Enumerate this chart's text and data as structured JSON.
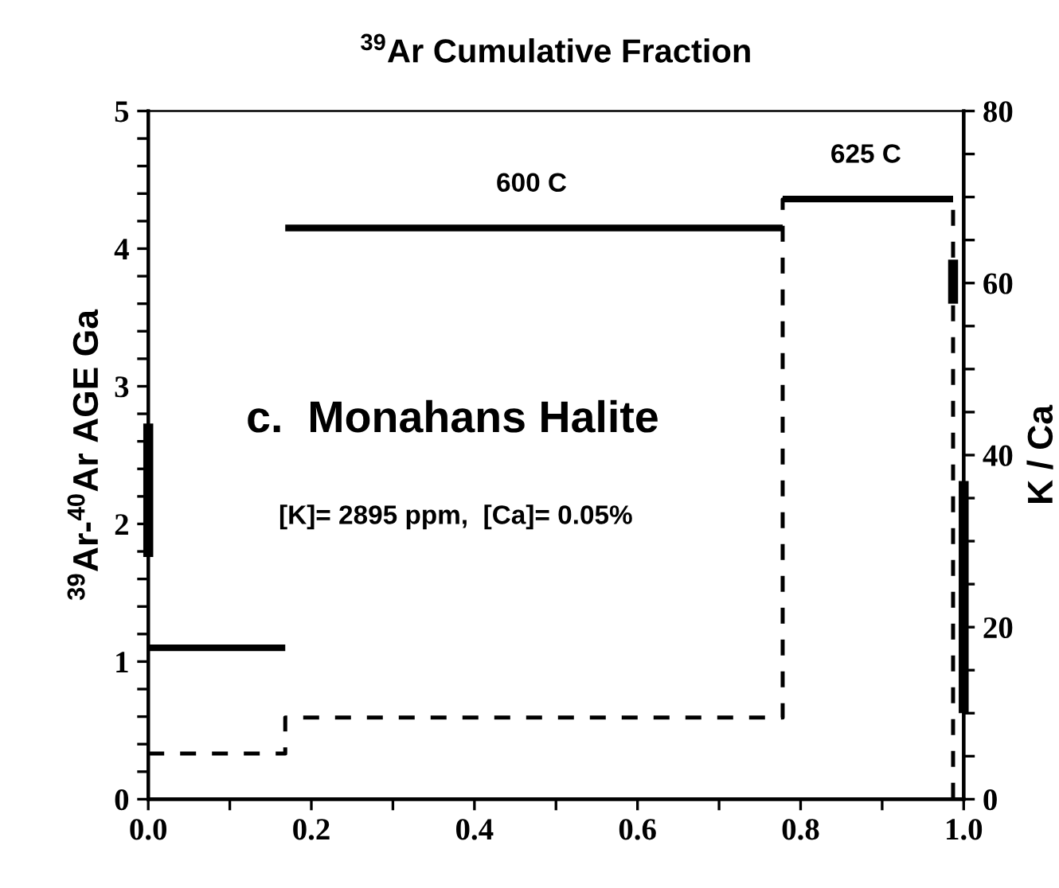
{
  "chart_data": {
    "type": "line",
    "title": "$^{39}$Ar Cumulative Fraction",
    "ylabel": "$^{39}$Ar-$^{40}$Ar AGE Ga",
    "y2label": "K / Ca",
    "xlim": [
      0,
      1.0
    ],
    "xticks": [
      {
        "value": 0,
        "label": "0.0"
      },
      {
        "value": 0.1,
        "label": null
      },
      {
        "value": 0.2,
        "label": "0.2"
      },
      {
        "value": 0.3,
        "label": null
      },
      {
        "value": 0.4,
        "label": "0.4"
      },
      {
        "value": 0.5,
        "label": null
      },
      {
        "value": 0.6,
        "label": "0.6"
      },
      {
        "value": 0.7,
        "label": null
      },
      {
        "value": 0.8,
        "label": "0.8"
      },
      {
        "value": 0.9,
        "label": null
      },
      {
        "value": 1.0,
        "label": "1.0"
      }
    ],
    "ylim": [
      0,
      5
    ],
    "yticks": [
      0,
      {
        "value": 0.2,
        "label": null
      },
      {
        "value": 0.4,
        "label": null
      },
      {
        "value": 0.6,
        "label": null
      },
      {
        "value": 0.8,
        "label": null
      },
      1,
      {
        "value": 1.2,
        "label": null
      },
      {
        "value": 1.4,
        "label": null
      },
      {
        "value": 1.6,
        "label": null
      },
      {
        "value": 1.8,
        "label": null
      },
      2,
      {
        "value": 2.2,
        "label": null
      },
      {
        "value": 2.4,
        "label": null
      },
      {
        "value": 2.6,
        "label": null
      },
      {
        "value": 2.8,
        "label": null
      },
      3,
      {
        "value": 3.2,
        "label": null
      },
      {
        "value": 3.4,
        "label": null
      },
      {
        "value": 3.6,
        "label": null
      },
      {
        "value": 3.8,
        "label": null
      },
      4,
      {
        "value": 4.2,
        "label": null
      },
      {
        "value": 4.4,
        "label": null
      },
      {
        "value": 4.6,
        "label": null
      },
      {
        "value": 4.8,
        "label": null
      },
      5
    ],
    "y2lim": [
      0,
      80
    ],
    "y2ticks": [
      0,
      {
        "value": 5,
        "label": null
      },
      {
        "value": 10,
        "label": null
      },
      {
        "value": 15,
        "label": null
      },
      20,
      {
        "value": 25,
        "label": null
      },
      {
        "value": 30,
        "label": null
      },
      {
        "value": 35,
        "label": null
      },
      40,
      {
        "value": 45,
        "label": null
      },
      {
        "value": 50,
        "label": null
      },
      {
        "value": 55,
        "label": null
      },
      60,
      {
        "value": 65,
        "label": null
      },
      {
        "value": 70,
        "label": null
      },
      {
        "value": 75,
        "label": null
      },
      80
    ],
    "series": [
      {
        "color": "#000000",
        "line_style": "solid",
        "x": [
          0,
          0.168
        ],
        "values": [
          1.1,
          1.1
        ]
      },
      {
        "color": "#000000",
        "line_style": "solid",
        "x": [
          0.168,
          0.778
        ],
        "values": [
          4.15,
          4.15
        ]
      },
      {
        "color": "#000000",
        "line_style": "solid",
        "x": [
          0.778,
          0.987
        ],
        "values": [
          4.36,
          4.36
        ]
      },
      {
        "type": "step",
        "axis": "y2",
        "color": "#000000",
        "line_style": "dashed",
        "x": [
          0,
          0.168,
          0.778,
          0.987,
          1.0
        ],
        "values": [
          5.3,
          9.5,
          69.7,
          0,
          0
        ]
      },
      {
        "color": "#000000",
        "line_style": "solid",
        "x": [
          0.0,
          0.0
        ],
        "values": [
          1.76,
          2.73
        ]
      },
      {
        "color": "#000000",
        "line_style": "solid",
        "x": [
          0.987,
          0.987
        ],
        "values": [
          3.6,
          3.92
        ]
      },
      {
        "axis": "y2",
        "color": "#000000",
        "line_style": "solid",
        "x": [
          1.0,
          1.0
        ],
        "values": [
          10,
          37
        ]
      }
    ],
    "annotations": [
      {
        "text": "600 C",
        "x": 0.47,
        "y": 4.15
      },
      {
        "text": "625 C",
        "x": 0.88,
        "y": 4.36
      },
      "c.  Monahans Halite",
      "[K]= 2895 ppm,  [Ca]= 0.05%"
    ],
    "grid": false,
    "legend": false
  }
}
